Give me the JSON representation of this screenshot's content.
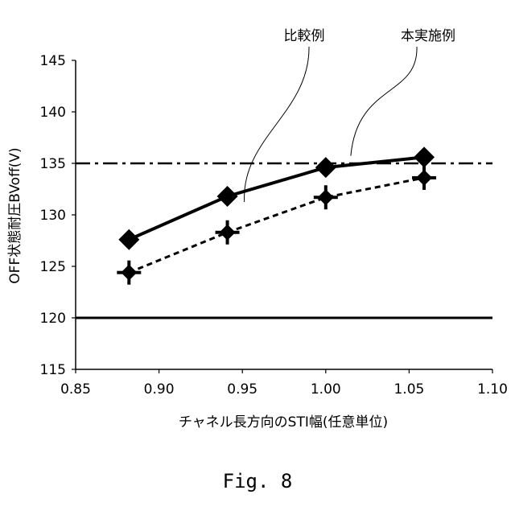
{
  "figure_label": "Fig. 8",
  "chart_data": {
    "type": "line",
    "xlabel": "チャネル長方向のSTI幅(任意単位)",
    "ylabel": "OFF状態耐圧BVoff(V)",
    "xlim": [
      0.85,
      1.1
    ],
    "ylim": [
      115,
      145
    ],
    "xticks": [
      "0.85",
      "0.90",
      "0.95",
      "1.00",
      "1.05",
      "1.10"
    ],
    "yticks": [
      "115",
      "120",
      "125",
      "130",
      "135",
      "140",
      "145"
    ],
    "grid": false,
    "series": [
      {
        "name": "本実施例",
        "line": "solid",
        "marker": "diamond",
        "color": "#000000",
        "x": [
          0.882,
          0.941,
          1.0,
          1.059
        ],
        "y": [
          127.6,
          131.8,
          134.6,
          135.6
        ]
      },
      {
        "name": "比較例",
        "line": "dashed",
        "marker": "diamond-cross",
        "color": "#000000",
        "x": [
          0.882,
          0.941,
          1.0,
          1.059
        ],
        "y": [
          124.4,
          128.3,
          131.7,
          133.6
        ]
      }
    ],
    "reference_lines": [
      {
        "y": 135,
        "style": "dash-dot"
      },
      {
        "y": 120,
        "style": "solid"
      }
    ],
    "annotations": [
      {
        "text": "比較例",
        "target_series": "比較例"
      },
      {
        "text": "本実施例",
        "target_series": "本実施例"
      }
    ]
  }
}
